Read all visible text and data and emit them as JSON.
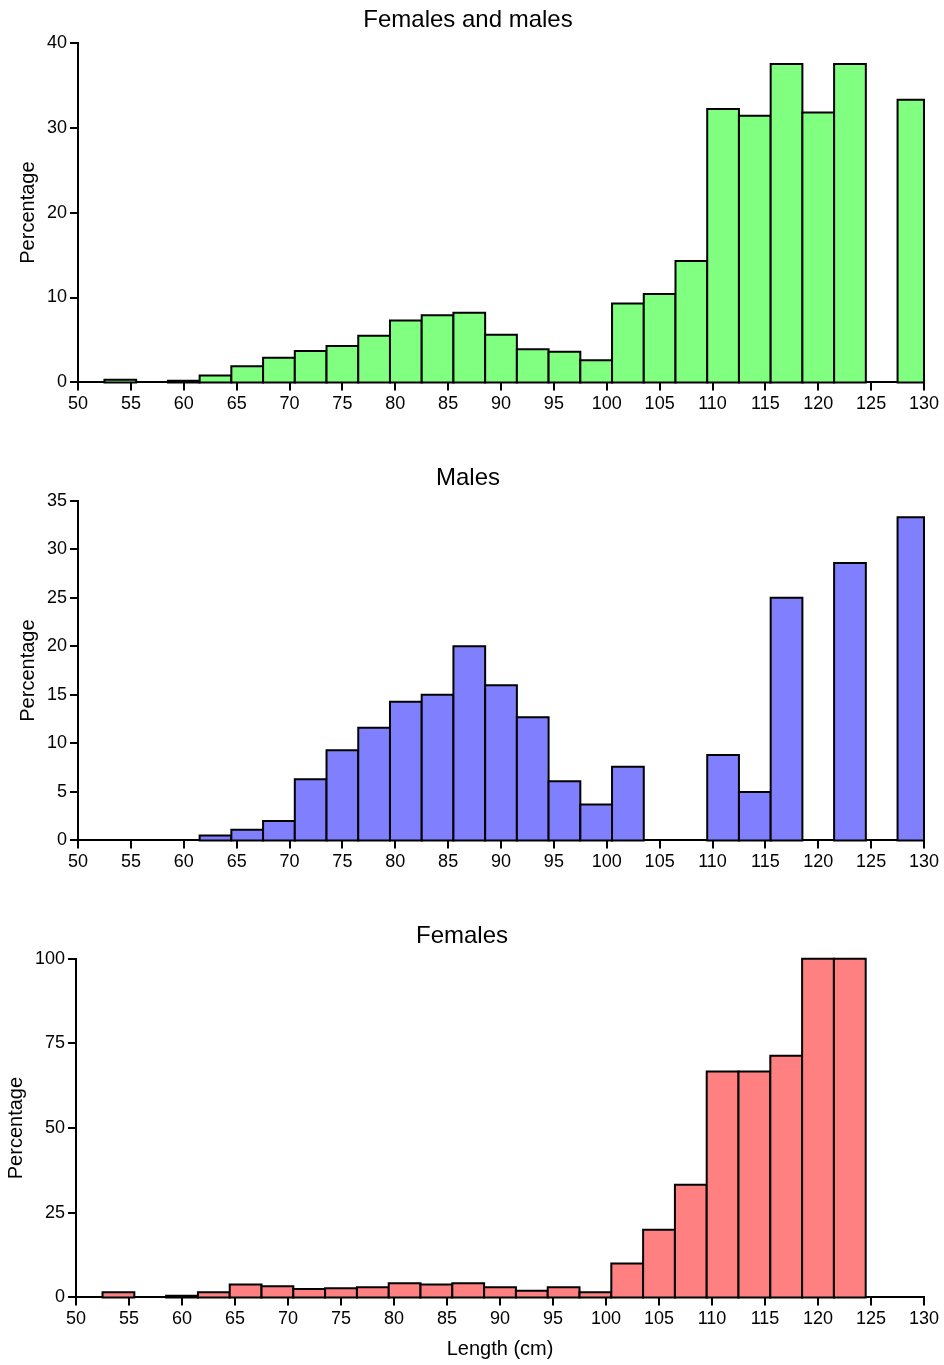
{
  "chart_data": [
    {
      "type": "histogram",
      "title": "Females and males",
      "ylabel": "Percentage",
      "color": "#80ff80",
      "grid": false,
      "bins": [
        52.5,
        55.5,
        58.5,
        61.5,
        64.5,
        67.5,
        70.5,
        73.5,
        76.5,
        79.5,
        82.5,
        85.5,
        88.5,
        91.5,
        94.5,
        97.5,
        100.5,
        103.5,
        106.5,
        109.5,
        112.5,
        115.5,
        118.5,
        121.5,
        124.5,
        127.5,
        130
      ],
      "values": [
        0.3,
        0,
        0.2,
        0.8,
        1.9,
        2.9,
        3.7,
        4.3,
        5.5,
        7.3,
        7.9,
        8.2,
        5.6,
        3.9,
        3.6,
        2.6,
        9.3,
        10.4,
        14.3,
        32.2,
        31.4,
        37.5,
        31.8,
        37.5,
        0,
        33.3
      ],
      "xlim": [
        50,
        130
      ],
      "xticks": [
        50,
        55,
        60,
        65,
        70,
        75,
        80,
        85,
        90,
        95,
        100,
        105,
        110,
        115,
        120,
        125,
        130
      ],
      "ylim": [
        0,
        40
      ],
      "yticks": [
        0,
        10,
        20,
        30,
        40
      ]
    },
    {
      "type": "histogram",
      "title": "Males",
      "ylabel": "Percentage",
      "color": "#8080ff",
      "grid": false,
      "bins": [
        61.5,
        64.5,
        67.5,
        70.5,
        73.5,
        76.5,
        79.5,
        82.5,
        85.5,
        88.5,
        91.5,
        94.5,
        97.5,
        100.5,
        103.5,
        109.5,
        112.5,
        115.5,
        118.5,
        121.5,
        124.5,
        127.5,
        130
      ],
      "values": [
        0.5,
        1.1,
        2.0,
        6.3,
        9.3,
        11.6,
        14.3,
        15.0,
        20.0,
        16.0,
        12.7,
        6.1,
        3.7,
        7.6,
        0,
        8.8,
        5.0,
        25.0,
        0,
        28.6,
        0,
        33.3
      ],
      "xlim": [
        50,
        130
      ],
      "xticks": [
        50,
        55,
        60,
        65,
        70,
        75,
        80,
        85,
        90,
        95,
        100,
        105,
        110,
        115,
        120,
        125,
        130
      ],
      "ylim": [
        0,
        35
      ],
      "yticks": [
        0,
        5,
        10,
        15,
        20,
        25,
        30,
        35
      ]
    },
    {
      "type": "histogram",
      "title": "Females",
      "xlabel": "Length (cm)",
      "ylabel": "Percentage",
      "color": "#ff8080",
      "grid": false,
      "bins": [
        52.5,
        55.5,
        58.5,
        61.5,
        64.5,
        67.5,
        70.5,
        73.5,
        76.5,
        79.5,
        82.5,
        85.5,
        88.5,
        91.5,
        94.5,
        97.5,
        100.5,
        103.5,
        106.5,
        109.5,
        112.5,
        115.5,
        118.5,
        121.5,
        124.5
      ],
      "values": [
        1.5,
        0,
        0.5,
        1.5,
        3.8,
        3.3,
        2.5,
        2.7,
        3.0,
        4.2,
        3.8,
        4.2,
        3.0,
        2.0,
        3.0,
        1.5,
        10,
        20,
        33.3,
        66.7,
        66.7,
        71.4,
        100,
        100
      ],
      "xlim": [
        50,
        130
      ],
      "xticks": [
        50,
        55,
        60,
        65,
        70,
        75,
        80,
        85,
        90,
        95,
        100,
        105,
        110,
        115,
        120,
        125,
        130
      ],
      "ylim": [
        0,
        100
      ],
      "yticks": [
        0,
        25,
        50,
        75,
        100
      ]
    }
  ]
}
